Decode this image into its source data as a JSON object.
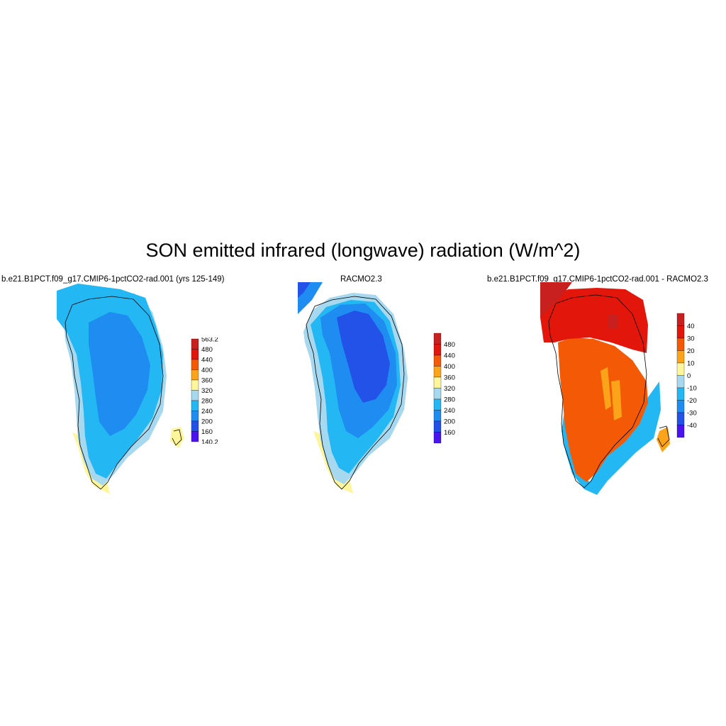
{
  "figure": {
    "title": "SON emitted infrared (longwave) radiation (W/m^2)"
  },
  "panels": [
    {
      "title": "b.e21.B1PCT.f09_g17.CMIP6-1pctCO2-rad.001 (yrs 125-149)",
      "colorbar": {
        "labels": [
          "563.2",
          "480",
          "440",
          "400",
          "360",
          "320",
          "280",
          "240",
          "200",
          "160",
          "140.2"
        ],
        "colors": [
          "#c8201e",
          "#e3160c",
          "#f45a05",
          "#fba41a",
          "#fff59a",
          "#a6d8f0",
          "#23b8f3",
          "#1e8cf0",
          "#2252e8",
          "#4a14f0"
        ]
      }
    },
    {
      "title": "RACMO2.3",
      "colorbar": {
        "labels": [
          "480",
          "440",
          "400",
          "360",
          "320",
          "280",
          "240",
          "200",
          "160"
        ],
        "colors": [
          "#c8201e",
          "#e3160c",
          "#f45a05",
          "#fba41a",
          "#fff59a",
          "#a6d8f0",
          "#23b8f3",
          "#1e8cf0",
          "#2252e8",
          "#4a14f0"
        ]
      }
    },
    {
      "title": "b.e21.B1PCT.f09_g17.CMIP6-1pctCO2-rad.001 - RACMO2.3",
      "colorbar": {
        "labels": [
          "40",
          "30",
          "20",
          "10",
          "0",
          "-10",
          "-20",
          "-30",
          "-40"
        ],
        "colors": [
          "#c8201e",
          "#e3160c",
          "#f45a05",
          "#fba41a",
          "#fff59a",
          "#a6d8f0",
          "#23b8f3",
          "#1e8cf0",
          "#2252e8",
          "#4a14f0"
        ]
      }
    }
  ]
}
